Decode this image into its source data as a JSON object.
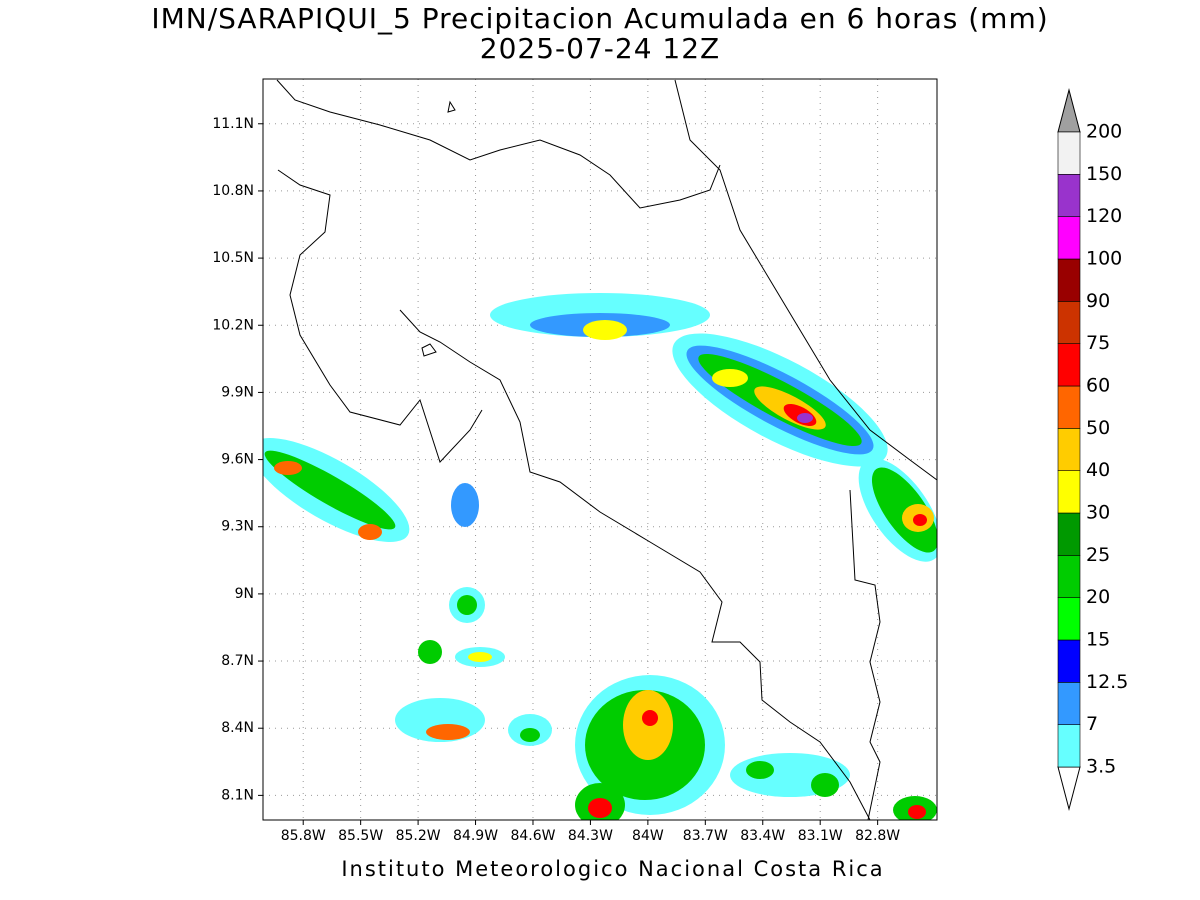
{
  "title": "IMN/SARAPIQUI_5 Precipitacion Acumulada en 6 horas (mm)",
  "subtitle": "2025-07-24 12Z",
  "footer": "Instituto Meteorologico Nacional Costa Rica",
  "map": {
    "lonlim": [
      -86.01,
      -82.49
    ],
    "latlim": [
      7.99,
      11.3
    ],
    "grid": true,
    "lat_ticks": [
      {
        "value": 11.1,
        "label": "11.1N"
      },
      {
        "value": 10.8,
        "label": "10.8N"
      },
      {
        "value": 10.5,
        "label": "10.5N"
      },
      {
        "value": 10.2,
        "label": "10.2N"
      },
      {
        "value": 9.9,
        "label": "9.9N"
      },
      {
        "value": 9.6,
        "label": "9.6N"
      },
      {
        "value": 9.3,
        "label": "9.3N"
      },
      {
        "value": 9,
        "label": "9N"
      },
      {
        "value": 8.7,
        "label": "8.7N"
      },
      {
        "value": 8.4,
        "label": "8.4N"
      },
      {
        "value": 8.1,
        "label": "8.1N"
      }
    ],
    "lon_ticks": [
      {
        "value": -85.8,
        "label": "85.8W"
      },
      {
        "value": -85.5,
        "label": "85.5W"
      },
      {
        "value": -85.2,
        "label": "85.2W"
      },
      {
        "value": -84.9,
        "label": "84.9W"
      },
      {
        "value": -84.6,
        "label": "84.6W"
      },
      {
        "value": -84.3,
        "label": "84.3W"
      },
      {
        "value": -84,
        "label": "84W"
      },
      {
        "value": -83.7,
        "label": "83.7W"
      },
      {
        "value": -83.4,
        "label": "83.4W"
      },
      {
        "value": -83.1,
        "label": "83.1W"
      },
      {
        "value": -82.8,
        "label": "82.8W"
      }
    ]
  },
  "colorbar": {
    "levels": [
      3.5,
      7,
      12.5,
      15,
      20,
      25,
      30,
      40,
      50,
      60,
      75,
      90,
      100,
      120,
      150,
      200
    ],
    "colors": [
      "#66ffff",
      "#3399ff",
      "#0000ff",
      "#00ff00",
      "#00cc00",
      "#009900",
      "#ffff00",
      "#ffcc00",
      "#ff6600",
      "#ff0000",
      "#cc3300",
      "#990000",
      "#ff00ff",
      "#9933cc",
      "#f2f2f2"
    ],
    "under_color": "#ffffff",
    "over_color": "#a0a0a0"
  }
}
